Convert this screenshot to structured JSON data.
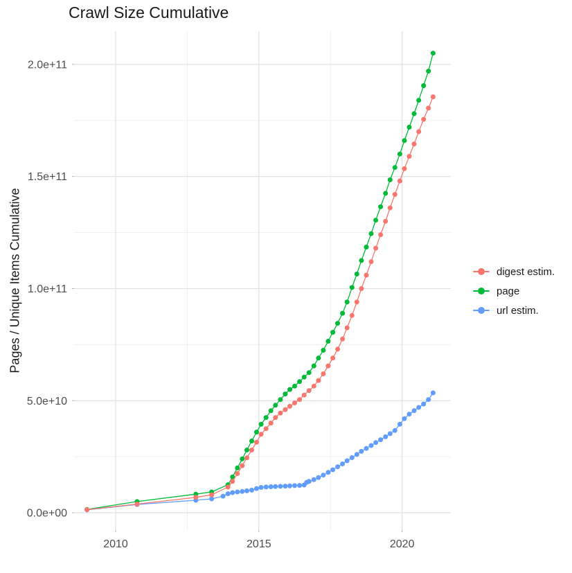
{
  "chart_data": {
    "type": "scatter",
    "title": "Crawl Size Cumulative",
    "xlabel": "",
    "ylabel": "Pages / Unique Items Cumulative",
    "xlim": [
      2008.55,
      2021.7
    ],
    "ylim": [
      -7700000000.0,
      214800000000.0
    ],
    "grid": true,
    "legend_position": "right",
    "x_major_ticks": [
      2010,
      2015,
      2020
    ],
    "x_tick_labels": [
      "2010",
      "2015",
      "2020"
    ],
    "x_minor_ticks": [
      2012.5,
      2017.5
    ],
    "y_major_ticks": [
      0,
      50000000000.0,
      100000000000.0,
      150000000000.0,
      200000000000.0
    ],
    "y_tick_labels": [
      "0.0e+00",
      "5.0e+10",
      "1.0e+11",
      "1.5e+11",
      "2.0e+11"
    ],
    "y_minor_ticks": [
      25000000000.0,
      75000000000.0,
      125000000000.0,
      175000000000.0
    ],
    "draw_order": [
      1,
      2,
      0
    ],
    "series": [
      {
        "name": "digest estim.",
        "color": "#F8766D",
        "points": [
          [
            2009.0,
            1400000000.0
          ],
          [
            2010.75,
            3900000000.0
          ],
          [
            2012.8,
            6900000000.0
          ],
          [
            2013.35,
            8000000000.0
          ],
          [
            2013.92,
            11500000000.0
          ],
          [
            2014.08,
            14000000000.0
          ],
          [
            2014.25,
            17500000000.0
          ],
          [
            2014.42,
            21000000000.0
          ],
          [
            2014.58,
            24500000000.0
          ],
          [
            2014.75,
            28000000000.0
          ],
          [
            2014.92,
            31500000000.0
          ],
          [
            2015.08,
            35000000000.0
          ],
          [
            2015.25,
            37500000000.0
          ],
          [
            2015.42,
            40000000000.0
          ],
          [
            2015.58,
            42500000000.0
          ],
          [
            2015.75,
            44500000000.0
          ],
          [
            2015.92,
            46000000000.0
          ],
          [
            2016.08,
            47500000000.0
          ],
          [
            2016.25,
            49000000000.0
          ],
          [
            2016.42,
            50500000000.0
          ],
          [
            2016.58,
            52500000000.0
          ],
          [
            2016.75,
            54500000000.0
          ],
          [
            2016.92,
            56500000000.0
          ],
          [
            2017.08,
            59000000000.0
          ],
          [
            2017.25,
            62000000000.0
          ],
          [
            2017.42,
            65500000000.0
          ],
          [
            2017.58,
            69000000000.0
          ],
          [
            2017.75,
            73000000000.0
          ],
          [
            2017.92,
            77500000000.0
          ],
          [
            2018.08,
            82500000000.0
          ],
          [
            2018.25,
            88000000000.0
          ],
          [
            2018.42,
            94000000000.0
          ],
          [
            2018.58,
            100000000000.0
          ],
          [
            2018.75,
            106000000000.0
          ],
          [
            2018.92,
            112000000000.0
          ],
          [
            2019.08,
            118000000000.0
          ],
          [
            2019.25,
            124000000000.0
          ],
          [
            2019.42,
            130000000000.0
          ],
          [
            2019.58,
            136000000000.0
          ],
          [
            2019.75,
            142000000000.0
          ],
          [
            2019.92,
            148000000000.0
          ],
          [
            2020.08,
            153500000000.0
          ],
          [
            2020.25,
            159000000000.0
          ],
          [
            2020.42,
            164500000000.0
          ],
          [
            2020.58,
            170000000000.0
          ],
          [
            2020.75,
            175500000000.0
          ],
          [
            2020.92,
            180500000000.0
          ],
          [
            2021.08,
            185500000000.0
          ]
        ]
      },
      {
        "name": "page",
        "color": "#00BA38",
        "points": [
          [
            2009.0,
            1500000000.0
          ],
          [
            2010.75,
            5000000000.0
          ],
          [
            2012.8,
            8300000000.0
          ],
          [
            2013.35,
            9300000000.0
          ],
          [
            2013.92,
            12500000000.0
          ],
          [
            2014.08,
            16000000000.0
          ],
          [
            2014.25,
            20000000000.0
          ],
          [
            2014.42,
            24000000000.0
          ],
          [
            2014.58,
            28000000000.0
          ],
          [
            2014.75,
            32000000000.0
          ],
          [
            2014.92,
            36000000000.0
          ],
          [
            2015.08,
            39500000000.0
          ],
          [
            2015.25,
            42500000000.0
          ],
          [
            2015.42,
            45500000000.0
          ],
          [
            2015.58,
            48000000000.0
          ],
          [
            2015.75,
            50500000000.0
          ],
          [
            2015.92,
            53000000000.0
          ],
          [
            2016.08,
            55000000000.0
          ],
          [
            2016.25,
            56500000000.0
          ],
          [
            2016.42,
            58500000000.0
          ],
          [
            2016.58,
            60500000000.0
          ],
          [
            2016.75,
            62500000000.0
          ],
          [
            2016.92,
            65500000000.0
          ],
          [
            2017.08,
            69000000000.0
          ],
          [
            2017.25,
            72500000000.0
          ],
          [
            2017.42,
            76500000000.0
          ],
          [
            2017.58,
            80500000000.0
          ],
          [
            2017.75,
            84500000000.0
          ],
          [
            2017.92,
            89000000000.0
          ],
          [
            2018.08,
            94000000000.0
          ],
          [
            2018.25,
            100500000000.0
          ],
          [
            2018.42,
            106500000000.0
          ],
          [
            2018.58,
            112500000000.0
          ],
          [
            2018.75,
            118500000000.0
          ],
          [
            2018.92,
            124500000000.0
          ],
          [
            2019.08,
            130500000000.0
          ],
          [
            2019.25,
            136500000000.0
          ],
          [
            2019.42,
            142500000000.0
          ],
          [
            2019.58,
            148500000000.0
          ],
          [
            2019.75,
            154000000000.0
          ],
          [
            2019.92,
            160000000000.0
          ],
          [
            2020.08,
            166000000000.0
          ],
          [
            2020.25,
            172000000000.0
          ],
          [
            2020.42,
            178000000000.0
          ],
          [
            2020.58,
            184000000000.0
          ],
          [
            2020.75,
            190500000000.0
          ],
          [
            2020.92,
            197000000000.0
          ],
          [
            2021.08,
            205000000000.0
          ]
        ]
      },
      {
        "name": "url estim.",
        "color": "#619CFF",
        "points": [
          [
            2009.0,
            1300000000.0
          ],
          [
            2010.75,
            3700000000.0
          ],
          [
            2012.8,
            5600000000.0
          ],
          [
            2013.35,
            6200000000.0
          ],
          [
            2013.75,
            7400000000.0
          ],
          [
            2013.92,
            8500000000.0
          ],
          [
            2014.08,
            9000000000.0
          ],
          [
            2014.25,
            9300000000.0
          ],
          [
            2014.42,
            9500000000.0
          ],
          [
            2014.58,
            9800000000.0
          ],
          [
            2014.75,
            10100000000.0
          ],
          [
            2014.92,
            10800000000.0
          ],
          [
            2015.08,
            11300000000.0
          ],
          [
            2015.25,
            11500000000.0
          ],
          [
            2015.42,
            11600000000.0
          ],
          [
            2015.58,
            11700000000.0
          ],
          [
            2015.75,
            11800000000.0
          ],
          [
            2015.92,
            11900000000.0
          ],
          [
            2016.08,
            12000000000.0
          ],
          [
            2016.25,
            12100000000.0
          ],
          [
            2016.42,
            12200000000.0
          ],
          [
            2016.58,
            12400000000.0
          ],
          [
            2016.67,
            13600000000.0
          ],
          [
            2016.75,
            14000000000.0
          ],
          [
            2016.92,
            14800000000.0
          ],
          [
            2017.08,
            15700000000.0
          ],
          [
            2017.25,
            16800000000.0
          ],
          [
            2017.42,
            18000000000.0
          ],
          [
            2017.58,
            19200000000.0
          ],
          [
            2017.75,
            20500000000.0
          ],
          [
            2017.92,
            21800000000.0
          ],
          [
            2018.08,
            23200000000.0
          ],
          [
            2018.25,
            24600000000.0
          ],
          [
            2018.42,
            26000000000.0
          ],
          [
            2018.58,
            27400000000.0
          ],
          [
            2018.75,
            28700000000.0
          ],
          [
            2018.92,
            30000000000.0
          ],
          [
            2019.08,
            31300000000.0
          ],
          [
            2019.25,
            32600000000.0
          ],
          [
            2019.42,
            33900000000.0
          ],
          [
            2019.58,
            35300000000.0
          ],
          [
            2019.75,
            36700000000.0
          ],
          [
            2019.92,
            39500000000.0
          ],
          [
            2020.08,
            42000000000.0
          ],
          [
            2020.25,
            44000000000.0
          ],
          [
            2020.42,
            45500000000.0
          ],
          [
            2020.58,
            47000000000.0
          ],
          [
            2020.75,
            48500000000.0
          ],
          [
            2020.92,
            50500000000.0
          ],
          [
            2021.08,
            53500000000.0
          ]
        ]
      }
    ],
    "style": {
      "background": "#FFFFFF",
      "grid_major_color": "#DEDEDE",
      "grid_minor_color": "#EFEFEF",
      "tick_label_color": "#4D4D4D",
      "text_color": "#1A1A1A",
      "point_radius": 3.5,
      "line_width": 1.3
    }
  }
}
